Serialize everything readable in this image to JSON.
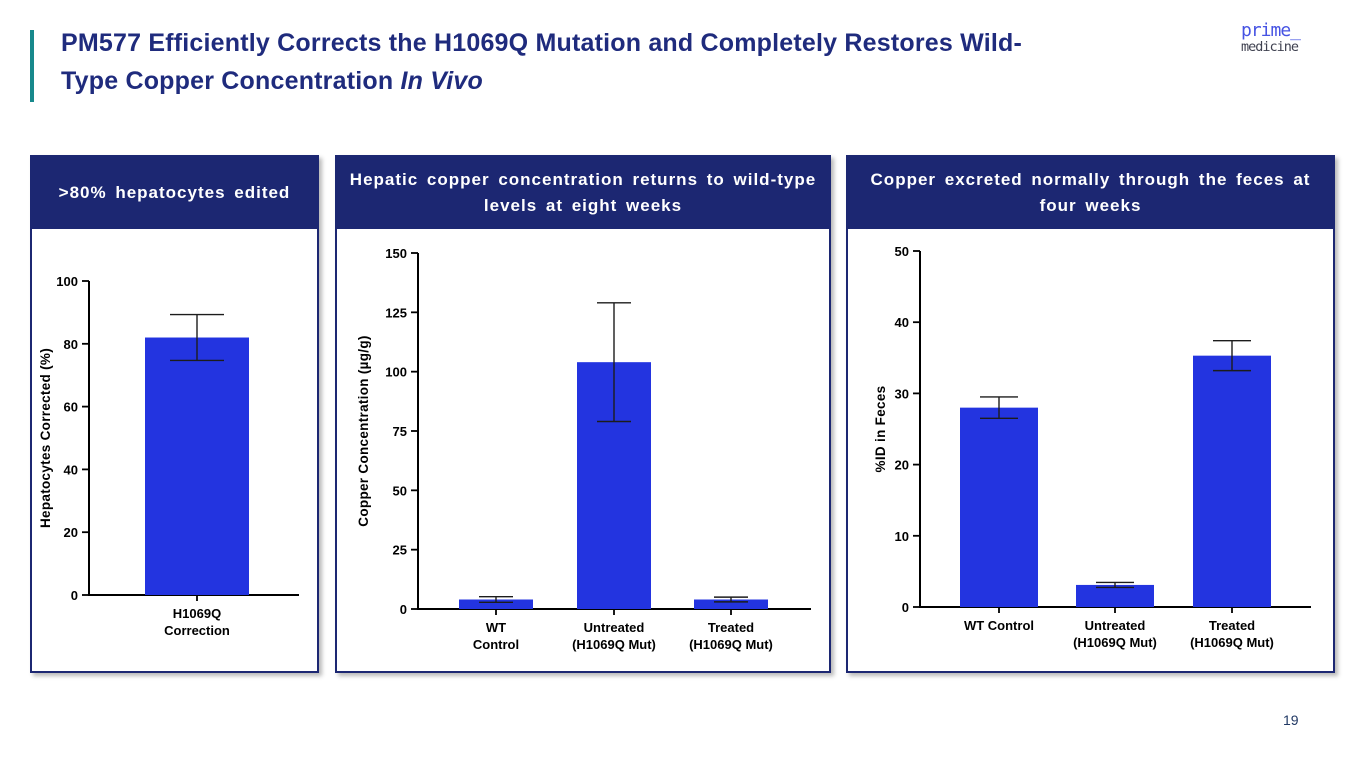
{
  "slide": {
    "title_line1": "PM577 Efficiently Corrects the H1069Q Mutation and Completely Restores Wild-",
    "title_line2": "Type Copper Concentration ",
    "title_italic": "In Vivo",
    "page_number": "19",
    "logo_top": "prime_",
    "logo_bottom": "medicine"
  },
  "colors": {
    "accent_teal": "#17898C",
    "panel_navy": "#1C2772",
    "title_navy": "#1F2B7D",
    "bar_blue": "#2334E0"
  },
  "panels": [
    {
      "header": ">80% hepatocytes edited"
    },
    {
      "header": "Hepatic copper concentration returns to wild-type levels at eight weeks"
    },
    {
      "header": "Copper excreted normally through the feces at four weeks"
    }
  ],
  "chart_data": [
    {
      "type": "bar",
      "title": ">80% hepatocytes edited",
      "xlabel": "",
      "ylabel": "Hepatocytes  Corrected  (%)",
      "ylim": [
        0,
        100
      ],
      "yticks": [
        0,
        20,
        40,
        60,
        80,
        100
      ],
      "grid": false,
      "legend": "none",
      "categories": [
        "H1069Q\nCorrection"
      ],
      "values": [
        82
      ],
      "errors": [
        7.3
      ],
      "bar_color": "#2334E0"
    },
    {
      "type": "bar",
      "title": "Hepatic copper concentration returns to wild-type levels at eight weeks",
      "xlabel": "",
      "ylabel": "Copper Concentration (µg/g)",
      "ylim": [
        0,
        150
      ],
      "yticks": [
        0,
        25,
        50,
        75,
        100,
        125,
        150
      ],
      "grid": false,
      "legend": "none",
      "categories": [
        "WT\nControl",
        "Untreated\n(H1069Q Mut)",
        "Treated\n(H1069Q Mut)"
      ],
      "values": [
        4,
        104,
        4
      ],
      "errors": [
        1.2,
        25,
        1
      ],
      "bar_color": "#2334E0"
    },
    {
      "type": "bar",
      "title": "Copper excreted normally through the feces at four weeks",
      "xlabel": "",
      "ylabel": "%ID in Feces",
      "ylim": [
        0,
        50
      ],
      "yticks": [
        0,
        10,
        20,
        30,
        40,
        50
      ],
      "grid": false,
      "legend": "none",
      "categories": [
        "WT Control",
        "Untreated\n(H1069Q Mut)",
        "Treated\n(H1069Q Mut)"
      ],
      "values": [
        28,
        3.1,
        35.3
      ],
      "errors": [
        1.5,
        0.35,
        2.1
      ],
      "bar_color": "#2334E0"
    }
  ]
}
